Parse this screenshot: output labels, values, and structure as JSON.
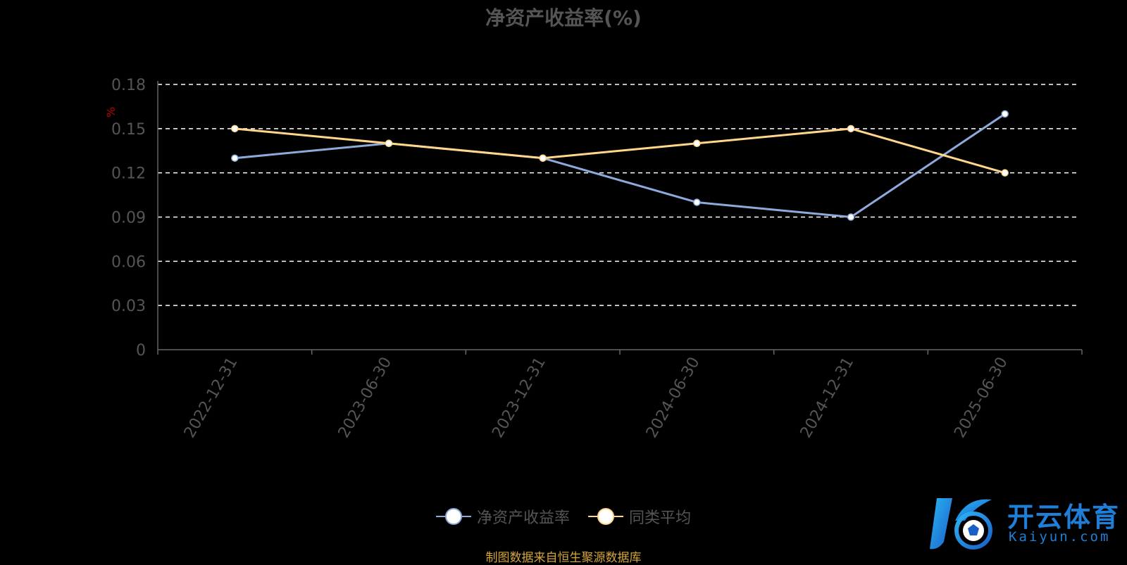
{
  "chart_data": {
    "type": "line",
    "title": "净资产收益率(%)",
    "unit_label": "%",
    "categories": [
      "2022-12-31",
      "2023-06-30",
      "2023-12-31",
      "2024-06-30",
      "2024-12-31",
      "2025-06-30"
    ],
    "y_ticks": [
      "0",
      "0.03",
      "0.06",
      "0.09",
      "0.12",
      "0.15",
      "0.18"
    ],
    "ylim": [
      0,
      0.18
    ],
    "grid": true,
    "legend_position": "bottom-center",
    "series": [
      {
        "name": "净资产收益率",
        "values": [
          0.13,
          0.14,
          0.13,
          0.1,
          0.09,
          0.16
        ],
        "color": "#8eaadb"
      },
      {
        "name": "同类平均",
        "values": [
          0.15,
          0.14,
          0.13,
          0.14,
          0.15,
          0.12
        ],
        "color": "#ffd68a"
      }
    ]
  },
  "source_note": "制图数据来自恒生聚源数据库",
  "logo": {
    "brand": "开云体育",
    "domain": "Kaiyun.com"
  }
}
